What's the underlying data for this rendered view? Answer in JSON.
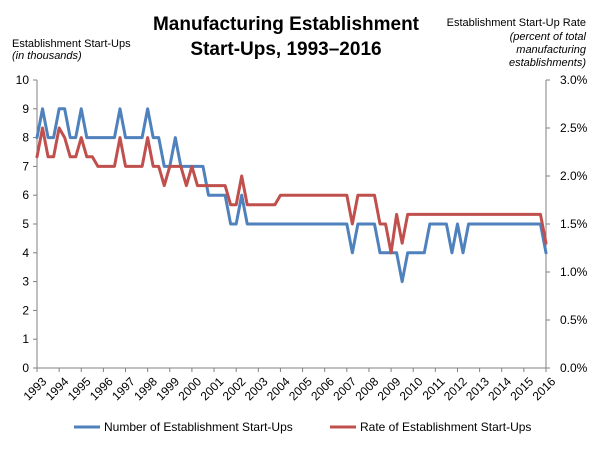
{
  "chart_data": {
    "type": "line",
    "title_lines": [
      "Manufacturing  Establishment",
      "Start-Ups,  1993–2016"
    ],
    "left_axis_title": "Establishment Start-Ups",
    "left_axis_subtitle": "(in thousands)",
    "right_axis_title": "Establishment Start-Up Rate",
    "right_axis_subtitle_lines": [
      "(percent of total",
      "manufacturing",
      "establishments)"
    ],
    "left_ylim": [
      0,
      10
    ],
    "left_ticks": [
      "0",
      "1",
      "2",
      "3",
      "4",
      "5",
      "6",
      "7",
      "8",
      "9",
      "10"
    ],
    "right_ylim": [
      0,
      3
    ],
    "right_ticks": [
      "0.0%",
      "0.5%",
      "1.0%",
      "1.5%",
      "2.0%",
      "2.5%",
      "3.0%"
    ],
    "x_tick_labels": [
      "1993",
      "1994",
      "1995",
      "1996",
      "1997",
      "1998",
      "1999",
      "2000",
      "2001",
      "2002",
      "2003",
      "2004",
      "2005",
      "2006",
      "2007",
      "2008",
      "2009",
      "2010",
      "2011",
      "2012",
      "2013",
      "2014",
      "2015",
      "2016"
    ],
    "x_range": [
      1993,
      2016
    ],
    "colors": {
      "startups": "#4f81bd",
      "rate": "#c0504d",
      "axis": "#808080"
    },
    "series": [
      {
        "name": "Number of Establishment Start-Ups",
        "axis": "left",
        "points": [
          [
            1993.0,
            8
          ],
          [
            1993.25,
            9
          ],
          [
            1993.5,
            8
          ],
          [
            1993.75,
            8
          ],
          [
            1994.0,
            9
          ],
          [
            1994.25,
            9
          ],
          [
            1994.5,
            8
          ],
          [
            1994.75,
            8
          ],
          [
            1995.0,
            9
          ],
          [
            1995.25,
            8
          ],
          [
            1995.5,
            8
          ],
          [
            1995.75,
            8
          ],
          [
            1996.0,
            8
          ],
          [
            1996.25,
            8
          ],
          [
            1996.5,
            8
          ],
          [
            1996.75,
            9
          ],
          [
            1997.0,
            8
          ],
          [
            1997.25,
            8
          ],
          [
            1997.5,
            8
          ],
          [
            1997.75,
            8
          ],
          [
            1998.0,
            9
          ],
          [
            1998.25,
            8
          ],
          [
            1998.5,
            8
          ],
          [
            1998.75,
            7
          ],
          [
            1999.0,
            7
          ],
          [
            1999.25,
            8
          ],
          [
            1999.5,
            7
          ],
          [
            1999.75,
            7
          ],
          [
            2000.0,
            7
          ],
          [
            2000.25,
            7
          ],
          [
            2000.5,
            7
          ],
          [
            2000.75,
            6
          ],
          [
            2001.0,
            6
          ],
          [
            2001.25,
            6
          ],
          [
            2001.5,
            6
          ],
          [
            2001.75,
            5
          ],
          [
            2002.0,
            5
          ],
          [
            2002.25,
            6
          ],
          [
            2002.5,
            5
          ],
          [
            2002.75,
            5
          ],
          [
            2003.0,
            5
          ],
          [
            2003.25,
            5
          ],
          [
            2003.5,
            5
          ],
          [
            2003.75,
            5
          ],
          [
            2004.0,
            5
          ],
          [
            2004.25,
            5
          ],
          [
            2004.5,
            5
          ],
          [
            2004.75,
            5
          ],
          [
            2005.0,
            5
          ],
          [
            2005.25,
            5
          ],
          [
            2005.5,
            5
          ],
          [
            2005.75,
            5
          ],
          [
            2006.0,
            5
          ],
          [
            2006.25,
            5
          ],
          [
            2006.5,
            5
          ],
          [
            2006.75,
            5
          ],
          [
            2007.0,
            5
          ],
          [
            2007.25,
            4
          ],
          [
            2007.5,
            5
          ],
          [
            2007.75,
            5
          ],
          [
            2008.0,
            5
          ],
          [
            2008.25,
            5
          ],
          [
            2008.5,
            4
          ],
          [
            2008.75,
            4
          ],
          [
            2009.0,
            4
          ],
          [
            2009.25,
            4
          ],
          [
            2009.5,
            3
          ],
          [
            2009.75,
            4
          ],
          [
            2010.0,
            4
          ],
          [
            2010.25,
            4
          ],
          [
            2010.5,
            4
          ],
          [
            2010.75,
            5
          ],
          [
            2011.0,
            5
          ],
          [
            2011.25,
            5
          ],
          [
            2011.5,
            5
          ],
          [
            2011.75,
            4
          ],
          [
            2012.0,
            5
          ],
          [
            2012.25,
            4
          ],
          [
            2012.5,
            5
          ],
          [
            2012.75,
            5
          ],
          [
            2013.0,
            5
          ],
          [
            2013.25,
            5
          ],
          [
            2013.5,
            5
          ],
          [
            2013.75,
            5
          ],
          [
            2014.0,
            5
          ],
          [
            2014.25,
            5
          ],
          [
            2014.5,
            5
          ],
          [
            2014.75,
            5
          ],
          [
            2015.0,
            5
          ],
          [
            2015.25,
            5
          ],
          [
            2015.5,
            5
          ],
          [
            2015.75,
            5
          ],
          [
            2016.0,
            4
          ]
        ]
      },
      {
        "name": "Rate of Establishment Start-Ups",
        "axis": "right",
        "points": [
          [
            1993.0,
            2.2
          ],
          [
            1993.25,
            2.5
          ],
          [
            1993.5,
            2.2
          ],
          [
            1993.75,
            2.2
          ],
          [
            1994.0,
            2.5
          ],
          [
            1994.25,
            2.4
          ],
          [
            1994.5,
            2.2
          ],
          [
            1994.75,
            2.2
          ],
          [
            1995.0,
            2.4
          ],
          [
            1995.25,
            2.2
          ],
          [
            1995.5,
            2.2
          ],
          [
            1995.75,
            2.1
          ],
          [
            1996.0,
            2.1
          ],
          [
            1996.25,
            2.1
          ],
          [
            1996.5,
            2.1
          ],
          [
            1996.75,
            2.4
          ],
          [
            1997.0,
            2.1
          ],
          [
            1997.25,
            2.1
          ],
          [
            1997.5,
            2.1
          ],
          [
            1997.75,
            2.1
          ],
          [
            1998.0,
            2.4
          ],
          [
            1998.25,
            2.1
          ],
          [
            1998.5,
            2.1
          ],
          [
            1998.75,
            1.9
          ],
          [
            1999.0,
            2.1
          ],
          [
            1999.25,
            2.1
          ],
          [
            1999.5,
            2.1
          ],
          [
            1999.75,
            1.9
          ],
          [
            2000.0,
            2.1
          ],
          [
            2000.25,
            1.9
          ],
          [
            2000.5,
            1.9
          ],
          [
            2000.75,
            1.9
          ],
          [
            2001.0,
            1.9
          ],
          [
            2001.25,
            1.9
          ],
          [
            2001.5,
            1.9
          ],
          [
            2001.75,
            1.7
          ],
          [
            2002.0,
            1.7
          ],
          [
            2002.25,
            2.0
          ],
          [
            2002.5,
            1.7
          ],
          [
            2002.75,
            1.7
          ],
          [
            2003.0,
            1.7
          ],
          [
            2003.25,
            1.7
          ],
          [
            2003.5,
            1.7
          ],
          [
            2003.75,
            1.7
          ],
          [
            2004.0,
            1.8
          ],
          [
            2004.25,
            1.8
          ],
          [
            2004.5,
            1.8
          ],
          [
            2004.75,
            1.8
          ],
          [
            2005.0,
            1.8
          ],
          [
            2005.25,
            1.8
          ],
          [
            2005.5,
            1.8
          ],
          [
            2005.75,
            1.8
          ],
          [
            2006.0,
            1.8
          ],
          [
            2006.25,
            1.8
          ],
          [
            2006.5,
            1.8
          ],
          [
            2006.75,
            1.8
          ],
          [
            2007.0,
            1.8
          ],
          [
            2007.25,
            1.5
          ],
          [
            2007.5,
            1.8
          ],
          [
            2007.75,
            1.8
          ],
          [
            2008.0,
            1.8
          ],
          [
            2008.25,
            1.8
          ],
          [
            2008.5,
            1.5
          ],
          [
            2008.75,
            1.5
          ],
          [
            2009.0,
            1.2
          ],
          [
            2009.25,
            1.6
          ],
          [
            2009.5,
            1.3
          ],
          [
            2009.75,
            1.6
          ],
          [
            2010.0,
            1.6
          ],
          [
            2010.25,
            1.6
          ],
          [
            2010.5,
            1.6
          ],
          [
            2010.75,
            1.6
          ],
          [
            2011.0,
            1.6
          ],
          [
            2011.25,
            1.6
          ],
          [
            2011.5,
            1.6
          ],
          [
            2011.75,
            1.6
          ],
          [
            2012.0,
            1.6
          ],
          [
            2012.25,
            1.6
          ],
          [
            2012.5,
            1.6
          ],
          [
            2012.75,
            1.6
          ],
          [
            2013.0,
            1.6
          ],
          [
            2013.25,
            1.6
          ],
          [
            2013.5,
            1.6
          ],
          [
            2013.75,
            1.6
          ],
          [
            2014.0,
            1.6
          ],
          [
            2014.25,
            1.6
          ],
          [
            2014.5,
            1.6
          ],
          [
            2014.75,
            1.6
          ],
          [
            2015.0,
            1.6
          ],
          [
            2015.25,
            1.6
          ],
          [
            2015.5,
            1.6
          ],
          [
            2015.75,
            1.6
          ],
          [
            2016.0,
            1.3
          ]
        ]
      }
    ]
  }
}
